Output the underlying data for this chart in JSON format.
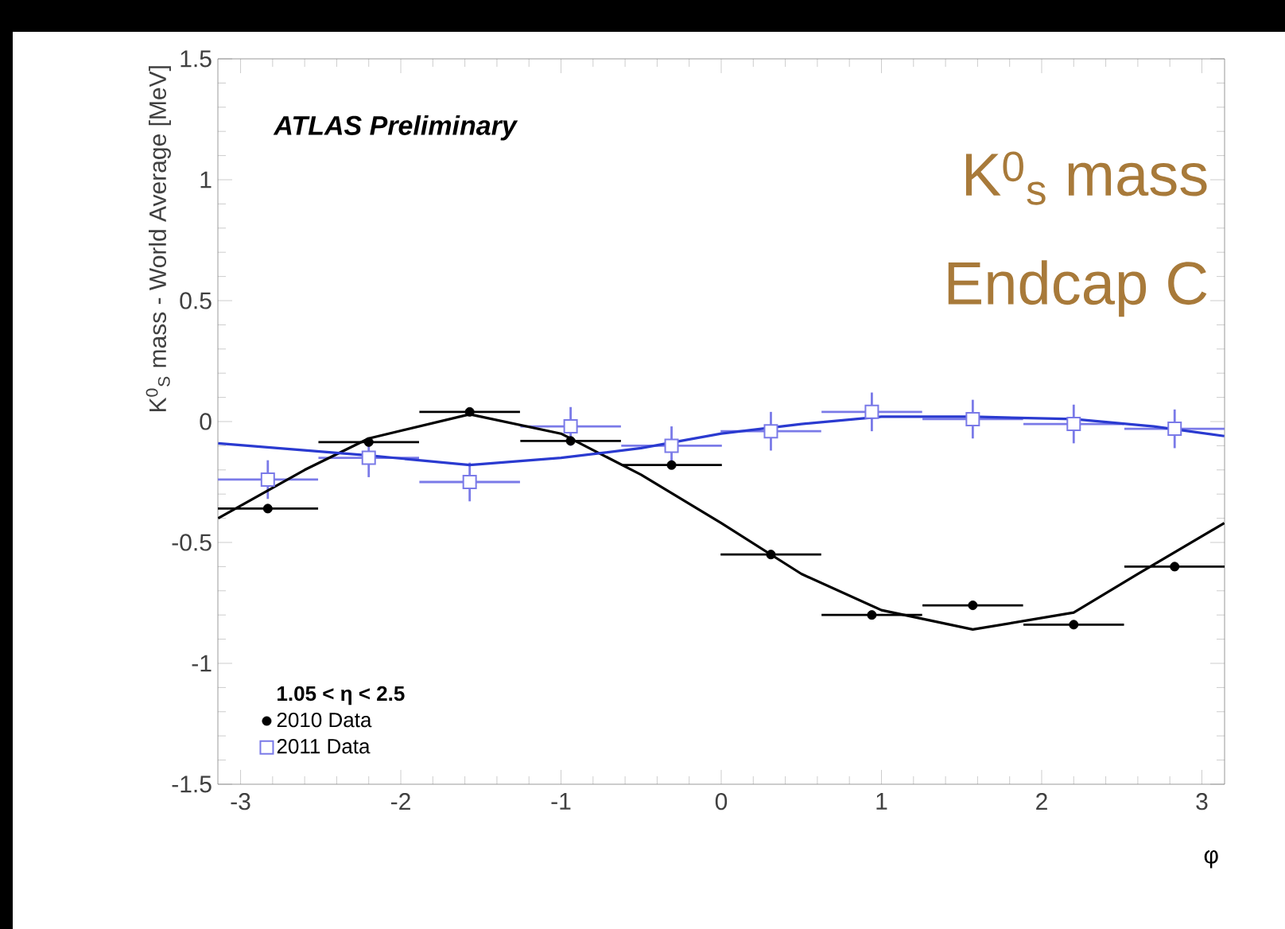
{
  "chart_data": {
    "type": "scatter",
    "xlabel": "φ",
    "ylabel": "K$^{0}$$_{S}$ mass - World Average [MeV]",
    "legend_title": "1.05 < η < 2.5",
    "annotations": [
      "ATLAS Preliminary",
      "K$^{0}$$_{s}$ mass",
      "Endcap C"
    ],
    "xlim": [
      -3.1416,
      3.1416
    ],
    "ylim": [
      -1.5,
      1.5
    ],
    "xticks": [
      -3,
      -2,
      -1,
      0,
      1,
      2,
      3
    ],
    "yticks": [
      -1.5,
      -1,
      -0.5,
      0,
      0.5,
      1,
      1.5
    ],
    "legend": "bottom left",
    "series": [
      {
        "name": "2010 Data",
        "marker": "circle",
        "color": "#000000",
        "x": [
          -2.83,
          -2.2,
          -1.57,
          -0.94,
          -0.31,
          0.31,
          0.94,
          1.57,
          2.2,
          2.83
        ],
        "values": [
          -0.36,
          -0.085,
          0.04,
          -0.08,
          -0.18,
          -0.55,
          -0.8,
          -0.76,
          -0.84,
          -0.6
        ],
        "xerrors": [
          0.314,
          0.314,
          0.314,
          0.314,
          0.314,
          0.314,
          0.314,
          0.314,
          0.314,
          0.314
        ]
      },
      {
        "name": "2011 Data",
        "marker": "square",
        "color": "#7a7ae8",
        "x": [
          -2.83,
          -2.2,
          -1.57,
          -0.94,
          -0.31,
          0.31,
          0.94,
          1.57,
          2.2,
          2.83
        ],
        "values": [
          -0.24,
          -0.15,
          -0.25,
          -0.02,
          -0.1,
          -0.04,
          0.04,
          0.01,
          -0.01,
          -0.03
        ],
        "xerrors": [
          0.314,
          0.314,
          0.314,
          0.314,
          0.314,
          0.314,
          0.314,
          0.314,
          0.314,
          0.314
        ],
        "errors": [
          0.08,
          0.08,
          0.08,
          0.08,
          0.08,
          0.08,
          0.08,
          0.08,
          0.08,
          0.08
        ]
      },
      {
        "type": "line",
        "color": "#000000",
        "x": [
          -3.14,
          -2.6,
          -2.2,
          -1.57,
          -1.0,
          -0.5,
          0.0,
          0.5,
          1.0,
          1.57,
          2.2,
          2.6,
          3.14
        ],
        "values": [
          -0.4,
          -0.2,
          -0.07,
          0.03,
          -0.05,
          -0.22,
          -0.42,
          -0.63,
          -0.78,
          -0.86,
          -0.79,
          -0.63,
          -0.42
        ]
      },
      {
        "type": "line",
        "color": "#2a3ad0",
        "x": [
          -3.14,
          -2.2,
          -1.57,
          -1.0,
          -0.5,
          0.0,
          0.5,
          1.0,
          1.57,
          2.2,
          2.7,
          3.14
        ],
        "values": [
          -0.09,
          -0.14,
          -0.18,
          -0.15,
          -0.11,
          -0.05,
          -0.01,
          0.02,
          0.02,
          0.01,
          -0.02,
          -0.06
        ]
      }
    ]
  }
}
